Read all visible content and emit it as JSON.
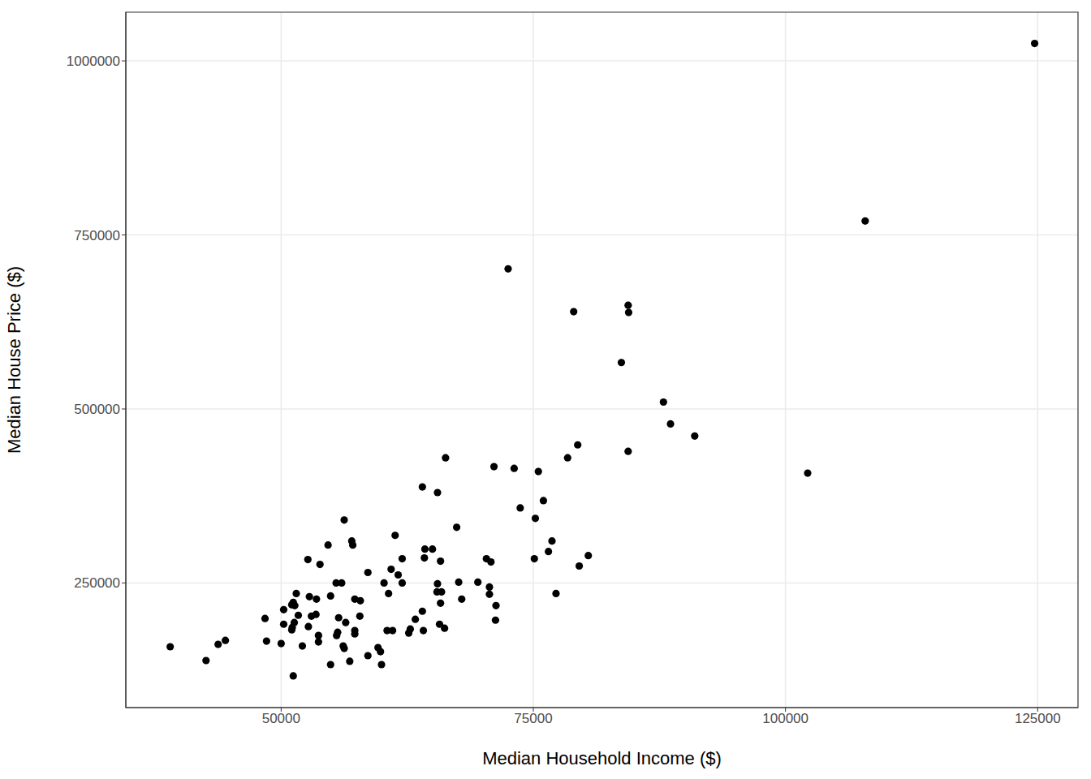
{
  "chart_data": {
    "type": "scatter",
    "x_label": "Median Household Income ($)",
    "y_label": "Median House Price ($)",
    "color": "#000000",
    "marker": "circle",
    "grid": true,
    "xlim": [
      34600,
      129000
    ],
    "ylim": [
      71000,
      1070000
    ],
    "xticks": [
      50000,
      75000,
      100000,
      125000
    ],
    "yticks": [
      250000,
      500000,
      750000,
      1000000
    ],
    "x": [
      124700,
      107900,
      72500,
      79000,
      84400,
      84450,
      83730,
      87900,
      88600,
      91000,
      102200,
      79400,
      84400,
      78400,
      66300,
      71100,
      73100,
      75500,
      64000,
      65500,
      76000,
      73700,
      75200,
      56250,
      67400,
      61300,
      57000,
      57100,
      54650,
      76850,
      64250,
      65000,
      76500,
      80450,
      75100,
      70350,
      64200,
      65800,
      70800,
      62000,
      52650,
      53850,
      79550,
      60900,
      58600,
      61600,
      55450,
      56000,
      62000,
      60200,
      67600,
      69500,
      65500,
      70650,
      65450,
      65900,
      60650,
      70650,
      77250,
      51500,
      54900,
      52800,
      53500,
      57300,
      57850,
      67900,
      51200,
      51050,
      51350,
      71300,
      65800,
      50250,
      64000,
      53000,
      51700,
      53450,
      55700,
      57800,
      63300,
      71250,
      48400,
      51300,
      50250,
      56400,
      65700,
      66200,
      51100,
      52700,
      51050,
      60500,
      61050,
      64100,
      62800,
      62650,
      57300,
      57300,
      55600,
      55500,
      53700,
      53700,
      44470,
      43750,
      48550,
      50000,
      52100,
      39000,
      56150,
      56250,
      59600,
      59850,
      58600,
      56800,
      42550,
      54900,
      59950,
      51200
    ],
    "values": [
      1025000,
      770000,
      701300,
      639800,
      649000,
      638600,
      566700,
      509900,
      478500,
      461100,
      407800,
      448400,
      439100,
      429800,
      429800,
      417100,
      414700,
      410100,
      388000,
      379900,
      368300,
      357900,
      342800,
      340500,
      330000,
      318400,
      310300,
      304500,
      304500,
      310300,
      298700,
      298700,
      295200,
      289400,
      284800,
      284800,
      286000,
      281300,
      280200,
      284800,
      283600,
      276700,
      274400,
      269700,
      265100,
      261600,
      250000,
      250000,
      250000,
      250000,
      251200,
      251200,
      248800,
      244200,
      237200,
      237200,
      234900,
      233800,
      234900,
      234900,
      231400,
      230300,
      226800,
      226800,
      224500,
      226800,
      222200,
      218700,
      217500,
      217500,
      221000,
      211700,
      209400,
      202400,
      203600,
      204800,
      200100,
      202400,
      197800,
      196600,
      199000,
      193200,
      190800,
      193200,
      190800,
      185000,
      186200,
      187400,
      182700,
      181600,
      181600,
      181600,
      183900,
      178100,
      181600,
      176900,
      179200,
      174600,
      174600,
      165300,
      167600,
      161800,
      166500,
      163000,
      159500,
      158400,
      159500,
      156000,
      157200,
      151400,
      145600,
      137500,
      138600,
      132800,
      132800,
      116600
    ]
  }
}
